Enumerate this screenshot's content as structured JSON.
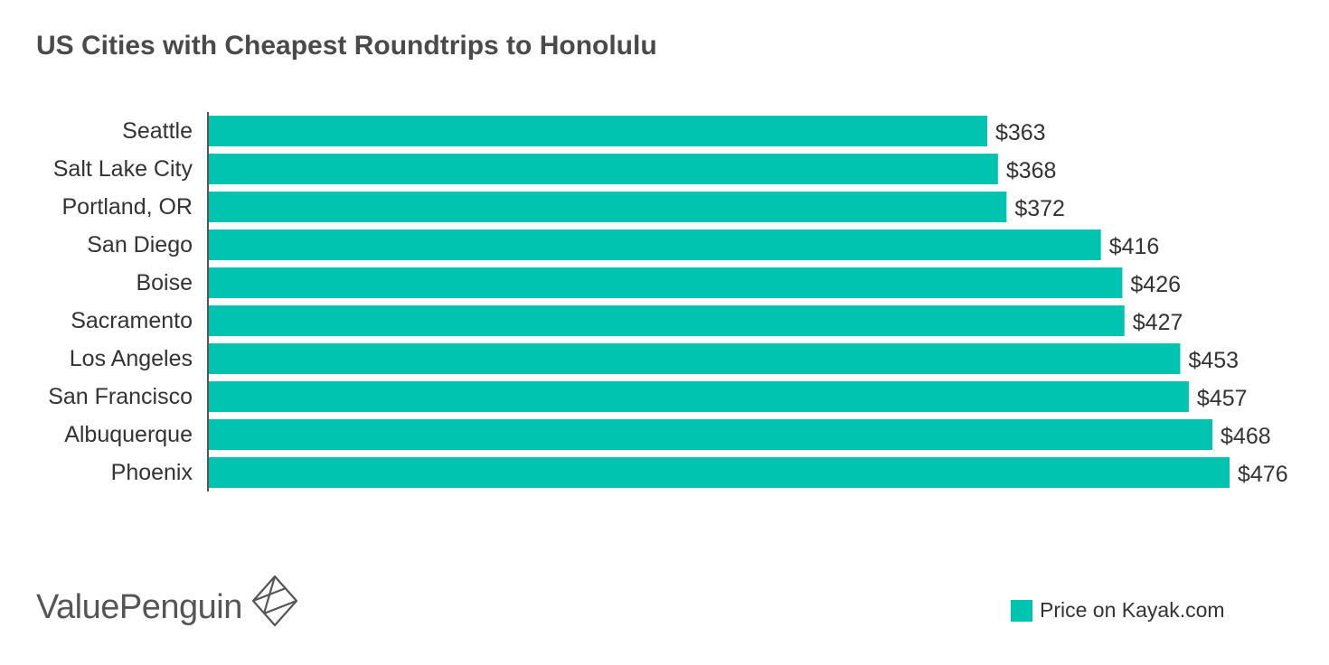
{
  "chart_data": {
    "type": "bar",
    "orientation": "horizontal",
    "title": "US Cities with Cheapest Roundtrips to Honolulu",
    "categories": [
      "Seattle",
      "Salt Lake City",
      "Portland, OR",
      "San Diego",
      "Boise",
      "Sacramento",
      "Los Angeles",
      "San Francisco",
      "Albuquerque",
      "Phoenix"
    ],
    "series": [
      {
        "name": "Price on Kayak.com",
        "values": [
          363,
          368,
          372,
          416,
          426,
          427,
          453,
          457,
          468,
          476
        ],
        "data_labels": [
          "$363",
          "$368",
          "$372",
          "$416",
          "$426",
          "$427",
          "$453",
          "$457",
          "$468",
          "$476"
        ],
        "color": "#00c4b0"
      }
    ],
    "xlim": [
      0,
      476
    ],
    "grid": false,
    "legend_position": "bottom-right"
  },
  "brand": {
    "text": "ValuePenguin",
    "logo_icon": "diamond-logo-icon"
  },
  "legend": {
    "label": "Price on Kayak.com",
    "color": "#00c4b0"
  },
  "colors": {
    "bar": "#00c4b0",
    "axis": "#555555",
    "text": "#333333"
  }
}
